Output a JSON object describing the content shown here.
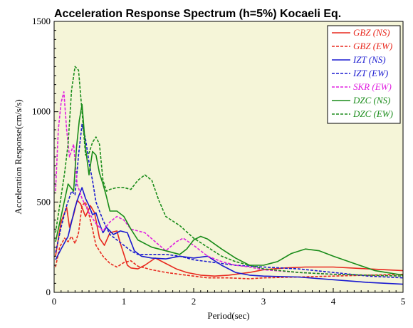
{
  "chart_data": {
    "type": "line",
    "title": "Acceleration Response Spectrum (h=5%) Kocaeli Eq.",
    "xlabel": "Period(sec)",
    "ylabel": "Acceleration Response(cm/s/s)",
    "xlim": [
      0,
      5
    ],
    "ylim": [
      0,
      1500
    ],
    "xticks": [
      "0",
      "1",
      "2",
      "3",
      "4",
      "5"
    ],
    "yticks": [
      "0",
      "500",
      "1000",
      "1500"
    ],
    "grid": false,
    "legend_position": "top-right",
    "plot_background": "#f5f5d8",
    "series": [
      {
        "name": "GBZ (NS)",
        "color": "#e8281e",
        "dash": "solid",
        "points": [
          [
            0.02,
            200
          ],
          [
            0.1,
            390
          ],
          [
            0.18,
            470
          ],
          [
            0.22,
            360
          ],
          [
            0.28,
            430
          ],
          [
            0.33,
            510
          ],
          [
            0.38,
            490
          ],
          [
            0.45,
            420
          ],
          [
            0.52,
            480
          ],
          [
            0.58,
            440
          ],
          [
            0.65,
            300
          ],
          [
            0.72,
            260
          ],
          [
            0.8,
            330
          ],
          [
            0.9,
            340
          ],
          [
            0.95,
            270
          ],
          [
            1.0,
            210
          ],
          [
            1.05,
            150
          ],
          [
            1.1,
            135
          ],
          [
            1.2,
            130
          ],
          [
            1.3,
            150
          ],
          [
            1.45,
            190
          ],
          [
            1.6,
            160
          ],
          [
            1.75,
            130
          ],
          [
            1.9,
            110
          ],
          [
            2.1,
            95
          ],
          [
            2.3,
            90
          ],
          [
            2.5,
            95
          ],
          [
            2.8,
            110
          ],
          [
            3.0,
            125
          ],
          [
            3.3,
            135
          ],
          [
            3.6,
            140
          ],
          [
            4.0,
            140
          ],
          [
            4.5,
            130
          ],
          [
            5.0,
            120
          ]
        ]
      },
      {
        "name": "GBZ (EW)",
        "color": "#e8281e",
        "dash": "dashed",
        "points": [
          [
            0.02,
            140
          ],
          [
            0.08,
            250
          ],
          [
            0.15,
            300
          ],
          [
            0.2,
            280
          ],
          [
            0.25,
            310
          ],
          [
            0.3,
            270
          ],
          [
            0.35,
            330
          ],
          [
            0.4,
            480
          ],
          [
            0.45,
            500
          ],
          [
            0.5,
            430
          ],
          [
            0.55,
            350
          ],
          [
            0.6,
            260
          ],
          [
            0.7,
            200
          ],
          [
            0.8,
            160
          ],
          [
            0.9,
            140
          ],
          [
            1.0,
            165
          ],
          [
            1.1,
            175
          ],
          [
            1.2,
            145
          ],
          [
            1.4,
            125
          ],
          [
            1.6,
            110
          ],
          [
            1.8,
            100
          ],
          [
            2.0,
            90
          ],
          [
            2.2,
            80
          ],
          [
            2.5,
            80
          ],
          [
            2.8,
            75
          ],
          [
            3.0,
            80
          ],
          [
            3.5,
            85
          ],
          [
            4.0,
            90
          ],
          [
            4.5,
            95
          ],
          [
            5.0,
            100
          ]
        ]
      },
      {
        "name": "IZT (NS)",
        "color": "#1a1ad0",
        "dash": "solid",
        "points": [
          [
            0.02,
            180
          ],
          [
            0.1,
            240
          ],
          [
            0.2,
            310
          ],
          [
            0.3,
            470
          ],
          [
            0.35,
            530
          ],
          [
            0.4,
            580
          ],
          [
            0.45,
            520
          ],
          [
            0.5,
            480
          ],
          [
            0.55,
            430
          ],
          [
            0.6,
            440
          ],
          [
            0.65,
            380
          ],
          [
            0.7,
            330
          ],
          [
            0.75,
            360
          ],
          [
            0.85,
            320
          ],
          [
            0.95,
            340
          ],
          [
            1.05,
            330
          ],
          [
            1.15,
            230
          ],
          [
            1.25,
            200
          ],
          [
            1.4,
            190
          ],
          [
            1.6,
            185
          ],
          [
            1.8,
            200
          ],
          [
            2.0,
            190
          ],
          [
            2.2,
            200
          ],
          [
            2.4,
            150
          ],
          [
            2.6,
            110
          ],
          [
            2.8,
            95
          ],
          [
            3.0,
            90
          ],
          [
            3.5,
            85
          ],
          [
            4.0,
            70
          ],
          [
            4.5,
            55
          ],
          [
            5.0,
            45
          ]
        ]
      },
      {
        "name": "IZT (EW)",
        "color": "#1a1ad0",
        "dash": "dashed",
        "points": [
          [
            0.02,
            220
          ],
          [
            0.1,
            360
          ],
          [
            0.18,
            480
          ],
          [
            0.25,
            560
          ],
          [
            0.3,
            540
          ],
          [
            0.35,
            760
          ],
          [
            0.4,
            930
          ],
          [
            0.45,
            850
          ],
          [
            0.5,
            720
          ],
          [
            0.55,
            620
          ],
          [
            0.6,
            500
          ],
          [
            0.7,
            400
          ],
          [
            0.8,
            320
          ],
          [
            0.9,
            290
          ],
          [
            1.0,
            260
          ],
          [
            1.1,
            230
          ],
          [
            1.2,
            210
          ],
          [
            1.4,
            210
          ],
          [
            1.6,
            210
          ],
          [
            1.8,
            200
          ],
          [
            2.0,
            180
          ],
          [
            2.2,
            170
          ],
          [
            2.4,
            160
          ],
          [
            2.6,
            150
          ],
          [
            3.0,
            140
          ],
          [
            3.5,
            130
          ],
          [
            4.0,
            110
          ],
          [
            4.5,
            90
          ],
          [
            5.0,
            80
          ]
        ]
      },
      {
        "name": "SKR (EW)",
        "color": "#e020e0",
        "dash": "dashed",
        "points": [
          [
            0.02,
            560
          ],
          [
            0.06,
            900
          ],
          [
            0.1,
            1050
          ],
          [
            0.14,
            1110
          ],
          [
            0.18,
            900
          ],
          [
            0.22,
            750
          ],
          [
            0.28,
            820
          ],
          [
            0.33,
            600
          ],
          [
            0.4,
            520
          ],
          [
            0.5,
            440
          ],
          [
            0.6,
            380
          ],
          [
            0.7,
            340
          ],
          [
            0.8,
            390
          ],
          [
            0.9,
            420
          ],
          [
            1.0,
            400
          ],
          [
            1.1,
            350
          ],
          [
            1.2,
            340
          ],
          [
            1.3,
            330
          ],
          [
            1.45,
            280
          ],
          [
            1.6,
            230
          ],
          [
            1.75,
            280
          ],
          [
            1.85,
            300
          ],
          [
            2.0,
            260
          ],
          [
            2.2,
            200
          ],
          [
            2.4,
            170
          ],
          [
            2.6,
            150
          ],
          [
            2.8,
            140
          ],
          [
            3.0,
            125
          ],
          [
            3.5,
            110
          ],
          [
            4.0,
            100
          ],
          [
            4.5,
            95
          ],
          [
            5.0,
            90
          ]
        ]
      },
      {
        "name": "DZC (NS)",
        "color": "#1a8c1a",
        "dash": "solid",
        "points": [
          [
            0.02,
            280
          ],
          [
            0.1,
            420
          ],
          [
            0.2,
            600
          ],
          [
            0.28,
            560
          ],
          [
            0.32,
            800
          ],
          [
            0.36,
            950
          ],
          [
            0.4,
            1040
          ],
          [
            0.45,
            800
          ],
          [
            0.5,
            650
          ],
          [
            0.55,
            780
          ],
          [
            0.6,
            760
          ],
          [
            0.65,
            660
          ],
          [
            0.7,
            600
          ],
          [
            0.75,
            530
          ],
          [
            0.8,
            450
          ],
          [
            0.9,
            450
          ],
          [
            1.0,
            420
          ],
          [
            1.1,
            350
          ],
          [
            1.2,
            290
          ],
          [
            1.4,
            250
          ],
          [
            1.6,
            230
          ],
          [
            1.8,
            210
          ],
          [
            1.9,
            240
          ],
          [
            2.0,
            290
          ],
          [
            2.1,
            310
          ],
          [
            2.2,
            295
          ],
          [
            2.4,
            240
          ],
          [
            2.6,
            190
          ],
          [
            2.8,
            150
          ],
          [
            3.0,
            150
          ],
          [
            3.2,
            170
          ],
          [
            3.4,
            215
          ],
          [
            3.6,
            240
          ],
          [
            3.8,
            230
          ],
          [
            4.0,
            200
          ],
          [
            4.3,
            160
          ],
          [
            4.6,
            120
          ],
          [
            5.0,
            95
          ]
        ]
      },
      {
        "name": "DZC (EW)",
        "color": "#1a8c1a",
        "dash": "dashed",
        "points": [
          [
            0.02,
            330
          ],
          [
            0.08,
            480
          ],
          [
            0.15,
            660
          ],
          [
            0.2,
            820
          ],
          [
            0.25,
            1120
          ],
          [
            0.3,
            1250
          ],
          [
            0.35,
            1230
          ],
          [
            0.4,
            1000
          ],
          [
            0.45,
            760
          ],
          [
            0.5,
            770
          ],
          [
            0.55,
            830
          ],
          [
            0.6,
            860
          ],
          [
            0.65,
            820
          ],
          [
            0.7,
            620
          ],
          [
            0.75,
            560
          ],
          [
            0.8,
            570
          ],
          [
            0.9,
            580
          ],
          [
            1.0,
            580
          ],
          [
            1.1,
            570
          ],
          [
            1.2,
            620
          ],
          [
            1.3,
            650
          ],
          [
            1.4,
            620
          ],
          [
            1.5,
            510
          ],
          [
            1.6,
            420
          ],
          [
            1.8,
            370
          ],
          [
            2.0,
            300
          ],
          [
            2.2,
            250
          ],
          [
            2.4,
            200
          ],
          [
            2.6,
            170
          ],
          [
            2.8,
            150
          ],
          [
            3.0,
            130
          ],
          [
            3.5,
            110
          ],
          [
            4.0,
            100
          ],
          [
            4.5,
            95
          ],
          [
            5.0,
            90
          ]
        ]
      }
    ]
  }
}
